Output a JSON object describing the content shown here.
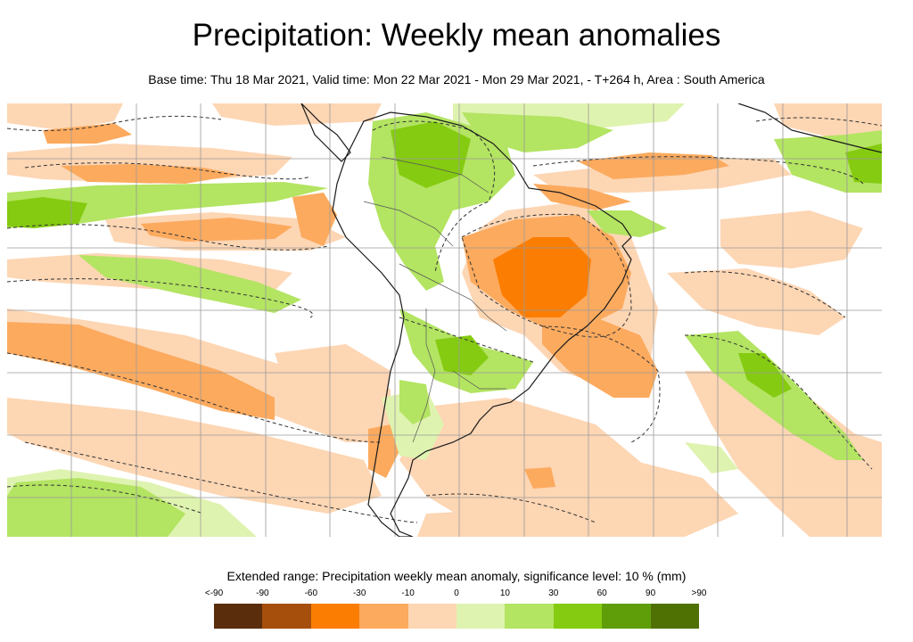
{
  "title": "Precipitation: Weekly mean anomalies",
  "subtitle": "Base time: Thu 18 Mar 2021, Valid time: Mon 22 Mar 2021 - Mon 29 Mar 2021, - T+264 h, Area : South America",
  "legend": {
    "title": "Extended range: Precipitation weekly mean anomaly, significance level: 10 % (mm)",
    "ticks": [
      "<-90",
      "-90",
      "-60",
      "-30",
      "-10",
      "0",
      "10",
      "30",
      "60",
      "90",
      ">90"
    ],
    "colors": [
      "#5a2d0c",
      "#a64f0c",
      "#fb7d02",
      "#fcaa5e",
      "#fdd6b4",
      "#dff3b0",
      "#b3e462",
      "#85cb11",
      "#5f9e09",
      "#4f7003"
    ]
  },
  "map": {
    "region": "South America",
    "features": [
      "precipitation-anomaly-fill",
      "significance-contour-dashed",
      "graticule",
      "coastline",
      "country-borders"
    ]
  }
}
